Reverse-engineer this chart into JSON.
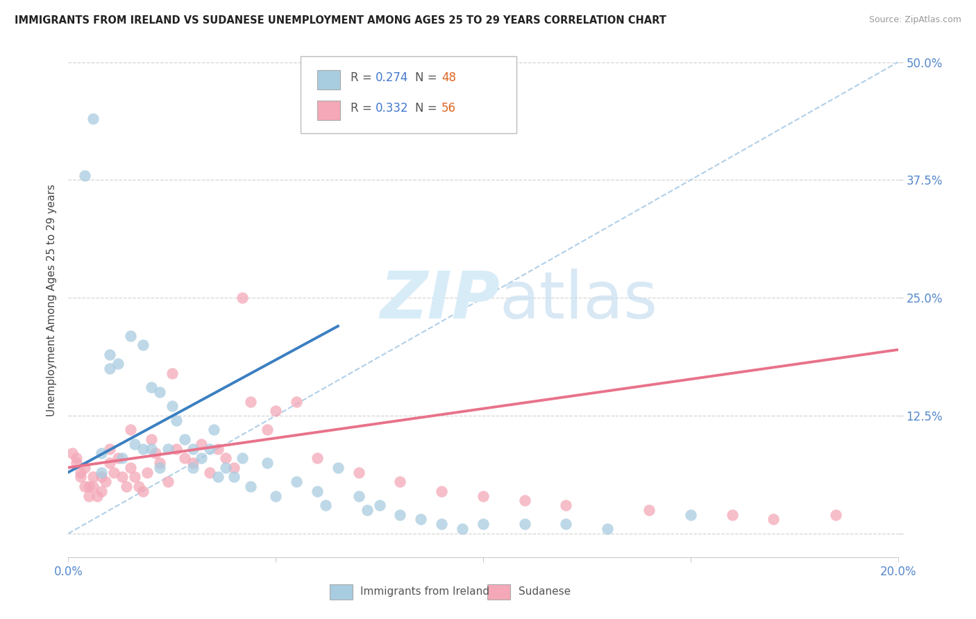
{
  "title": "IMMIGRANTS FROM IRELAND VS SUDANESE UNEMPLOYMENT AMONG AGES 25 TO 29 YEARS CORRELATION CHART",
  "source": "Source: ZipAtlas.com",
  "ylabel": "Unemployment Among Ages 25 to 29 years",
  "xlim": [
    0.0,
    0.2
  ],
  "ylim": [
    -0.025,
    0.52
  ],
  "ytick_vals": [
    0.0,
    0.125,
    0.25,
    0.375,
    0.5
  ],
  "ytick_labels": [
    "",
    "12.5%",
    "25.0%",
    "37.5%",
    "50.0%"
  ],
  "xtick_vals": [
    0.0,
    0.05,
    0.1,
    0.15,
    0.2
  ],
  "xtick_labels": [
    "0.0%",
    "",
    "",
    "",
    "20.0%"
  ],
  "ireland_color": "#a8cce0",
  "sudanese_color": "#f4a8b8",
  "ireland_line_color": "#3a7fc1",
  "sudanese_line_color": "#e8728a",
  "dashed_line_color": "#b0cfe8",
  "watermark_color": "#d8ecf8",
  "background_color": "#ffffff",
  "grid_color": "#d0d0d0",
  "tick_color": "#5588cc",
  "ireland_x": [
    0.008,
    0.008,
    0.01,
    0.01,
    0.012,
    0.013,
    0.015,
    0.016,
    0.018,
    0.018,
    0.02,
    0.02,
    0.022,
    0.022,
    0.024,
    0.025,
    0.026,
    0.028,
    0.03,
    0.03,
    0.032,
    0.034,
    0.035,
    0.036,
    0.038,
    0.04,
    0.042,
    0.044,
    0.048,
    0.05,
    0.055,
    0.06,
    0.062,
    0.065,
    0.07,
    0.072,
    0.075,
    0.08,
    0.085,
    0.09,
    0.095,
    0.1,
    0.11,
    0.12,
    0.13,
    0.15,
    0.004,
    0.006
  ],
  "ireland_y": [
    0.085,
    0.065,
    0.19,
    0.175,
    0.18,
    0.08,
    0.21,
    0.095,
    0.2,
    0.09,
    0.155,
    0.09,
    0.15,
    0.07,
    0.09,
    0.135,
    0.12,
    0.1,
    0.09,
    0.07,
    0.08,
    0.09,
    0.11,
    0.06,
    0.07,
    0.06,
    0.08,
    0.05,
    0.075,
    0.04,
    0.055,
    0.045,
    0.03,
    0.07,
    0.04,
    0.025,
    0.03,
    0.02,
    0.015,
    0.01,
    0.005,
    0.01,
    0.01,
    0.01,
    0.005,
    0.02,
    0.38,
    0.44
  ],
  "sudanese_x": [
    0.002,
    0.003,
    0.004,
    0.004,
    0.005,
    0.005,
    0.006,
    0.006,
    0.007,
    0.008,
    0.008,
    0.009,
    0.01,
    0.01,
    0.011,
    0.012,
    0.013,
    0.014,
    0.015,
    0.015,
    0.016,
    0.017,
    0.018,
    0.019,
    0.02,
    0.021,
    0.022,
    0.024,
    0.025,
    0.026,
    0.028,
    0.03,
    0.032,
    0.034,
    0.036,
    0.038,
    0.04,
    0.042,
    0.044,
    0.048,
    0.05,
    0.055,
    0.06,
    0.07,
    0.08,
    0.09,
    0.1,
    0.11,
    0.12,
    0.14,
    0.16,
    0.17,
    0.185,
    0.001,
    0.002,
    0.003
  ],
  "sudanese_y": [
    0.08,
    0.06,
    0.05,
    0.07,
    0.05,
    0.04,
    0.06,
    0.05,
    0.04,
    0.06,
    0.045,
    0.055,
    0.09,
    0.075,
    0.065,
    0.08,
    0.06,
    0.05,
    0.11,
    0.07,
    0.06,
    0.05,
    0.045,
    0.065,
    0.1,
    0.085,
    0.075,
    0.055,
    0.17,
    0.09,
    0.08,
    0.075,
    0.095,
    0.065,
    0.09,
    0.08,
    0.07,
    0.25,
    0.14,
    0.11,
    0.13,
    0.14,
    0.08,
    0.065,
    0.055,
    0.045,
    0.04,
    0.035,
    0.03,
    0.025,
    0.02,
    0.015,
    0.02,
    0.085,
    0.075,
    0.065
  ],
  "ireland_line_x0": 0.0,
  "ireland_line_y0": 0.065,
  "ireland_line_x1": 0.065,
  "ireland_line_y1": 0.22,
  "sudanese_line_x0": 0.0,
  "sudanese_line_y0": 0.07,
  "sudanese_line_x1": 0.2,
  "sudanese_line_y1": 0.195,
  "dashed_line_x0": 0.0,
  "dashed_line_y0": 0.0,
  "dashed_line_x1": 0.2,
  "dashed_line_y1": 0.5
}
